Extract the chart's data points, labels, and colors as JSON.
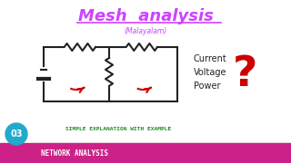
{
  "title": "Mesh  analysis",
  "subtitle": "(Malayalam)",
  "title_color": "#cc44ff",
  "subtitle_color": "#cc44ff",
  "simple_text": "SIMPLE EXPLANATION WITH EXAMPLE",
  "simple_text_color": "#228B22",
  "right_labels": [
    "Current",
    "Voltage",
    "Power"
  ],
  "right_labels_color": "#222222",
  "question_mark_color": "#cc0000",
  "circuit_color": "#222222",
  "mesh_arrow_color": "#cc0000",
  "bottom_bar_color": "#cc2288",
  "bottom_bar_text": "NETWORK ANALYSIS",
  "bottom_bar_text_color": "#ffffff",
  "badge_color": "#22aacc",
  "badge_text": "03",
  "badge_text_color": "#ffffff",
  "bg_color": "#ffffff"
}
